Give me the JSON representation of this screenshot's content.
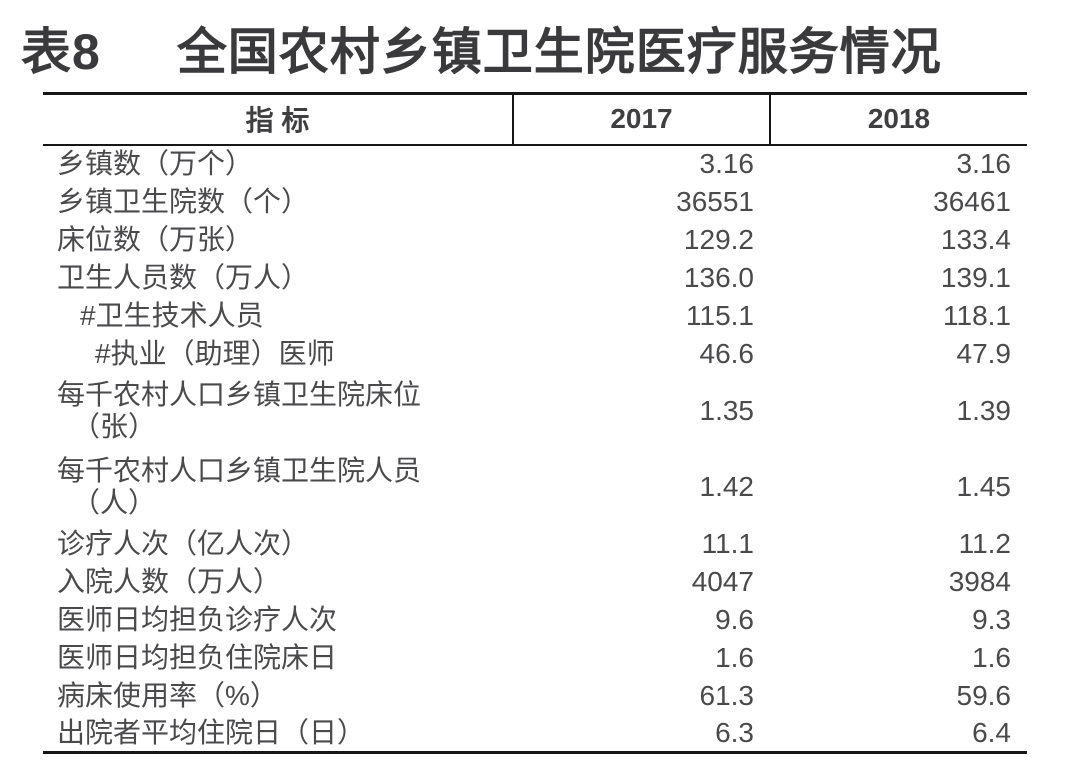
{
  "title": {
    "prefix": "表8",
    "text": "全国农村乡镇卫生院医疗服务情况"
  },
  "table": {
    "columns": [
      "指 标",
      "2017",
      "2018"
    ],
    "rows": [
      {
        "label": "乡镇数（万个）",
        "label2": "",
        "indent": 0,
        "v2017": "3.16",
        "v2018": "3.16"
      },
      {
        "label": "乡镇卫生院数（个）",
        "label2": "",
        "indent": 0,
        "v2017": "36551",
        "v2018": "36461"
      },
      {
        "label": "床位数（万张）",
        "label2": "",
        "indent": 0,
        "v2017": "129.2",
        "v2018": "133.4"
      },
      {
        "label": "卫生人员数（万人）",
        "label2": "",
        "indent": 0,
        "v2017": "136.0",
        "v2018": "139.1"
      },
      {
        "label": "#卫生技术人员",
        "label2": "",
        "indent": 1,
        "v2017": "115.1",
        "v2018": "118.1"
      },
      {
        "label": "#执业（助理）医师",
        "label2": "",
        "indent": 2,
        "v2017": "46.6",
        "v2018": "47.9"
      },
      {
        "label": "每千农村人口乡镇卫生院床位",
        "label2": "（张）",
        "indent": 0,
        "v2017": "1.35",
        "v2018": "1.39"
      },
      {
        "label": "每千农村人口乡镇卫生院人员",
        "label2": "（人）",
        "indent": 0,
        "v2017": "1.42",
        "v2018": "1.45"
      },
      {
        "label": "诊疗人次（亿人次）",
        "label2": "",
        "indent": 0,
        "v2017": "11.1",
        "v2018": "11.2"
      },
      {
        "label": "入院人数（万人）",
        "label2": "",
        "indent": 0,
        "v2017": "4047",
        "v2018": "3984"
      },
      {
        "label": "医师日均担负诊疗人次",
        "label2": "",
        "indent": 0,
        "v2017": "9.6",
        "v2018": "9.3"
      },
      {
        "label": "医师日均担负住院床日",
        "label2": "",
        "indent": 0,
        "v2017": "1.6",
        "v2018": "1.6"
      },
      {
        "label": "病床使用率（%）",
        "label2": "",
        "indent": 0,
        "v2017": "61.3",
        "v2018": "59.6"
      },
      {
        "label": "出院者平均住院日（日）",
        "label2": "",
        "indent": 0,
        "v2017": "6.3",
        "v2018": "6.4"
      }
    ]
  },
  "colors": {
    "title_text": "#3a3a3c",
    "body_text": "#4a4a4c",
    "border": "#161616",
    "background": "#ffffff"
  }
}
